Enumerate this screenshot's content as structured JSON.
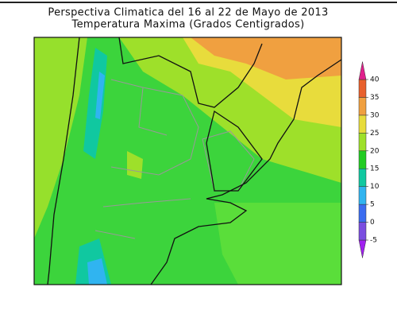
{
  "map": {
    "title": [
      "Perspectiva Climatica del 16 al 22 de Mayo de 2013",
      "Temperatura Maxima (Grados Centigrados)"
    ],
    "colorbar": {
      "ticks": [
        -5,
        0,
        5,
        10,
        15,
        20,
        25,
        30,
        35,
        40
      ],
      "colors": [
        "#a020f0",
        "#7a4ee0",
        "#3a6cf0",
        "#30b4f0",
        "#10c8a0",
        "#22cc22",
        "#9ee02a",
        "#e8dc3c",
        "#f0a040",
        "#e8602c",
        "#e0208c"
      ]
    }
  }
}
